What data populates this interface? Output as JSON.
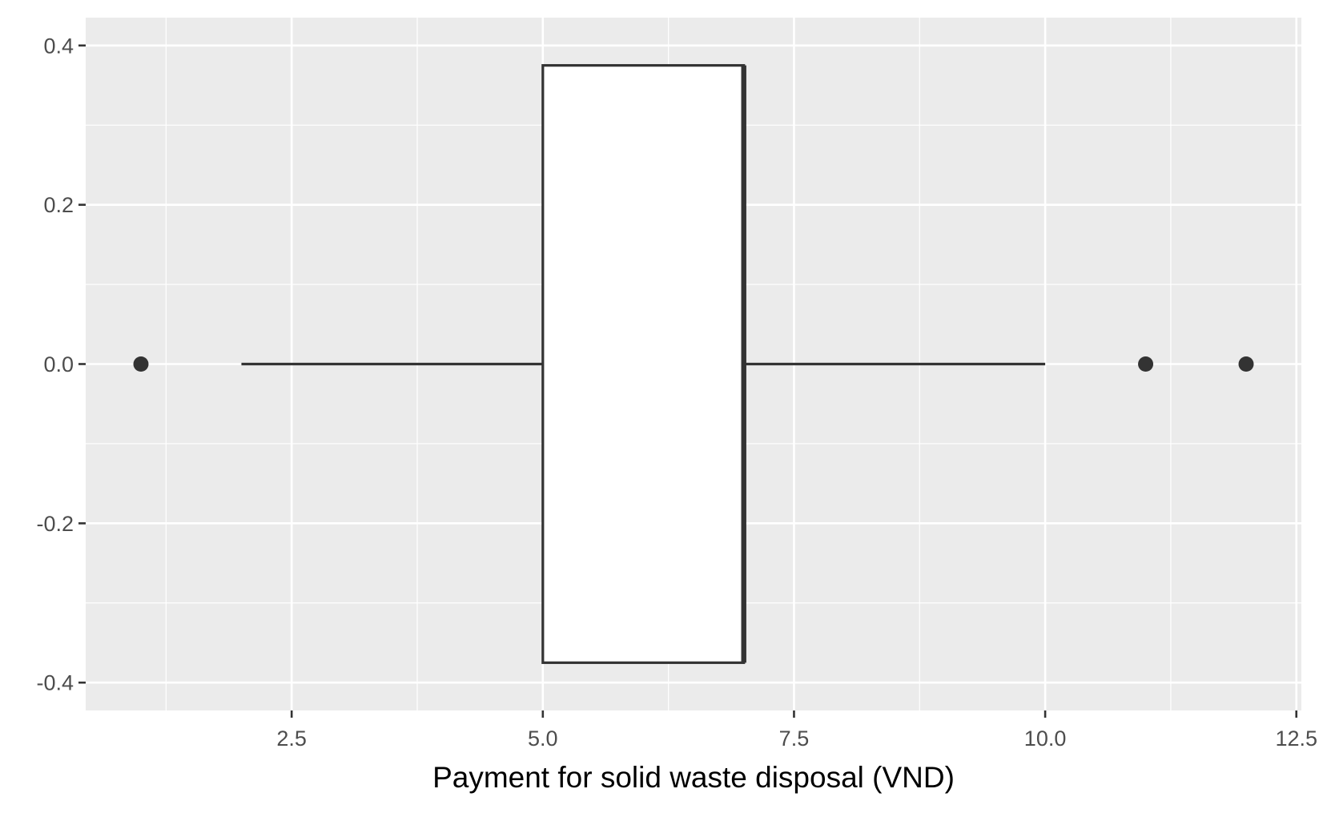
{
  "chart_data": {
    "type": "boxplot",
    "title": "",
    "xlabel": "Payment for solid waste disposal (VND)",
    "ylabel": "",
    "xlim": [
      0.45,
      12.55
    ],
    "ylim": [
      -0.4,
      0.4
    ],
    "x_ticks": [
      2.5,
      5.0,
      7.5,
      10.0,
      12.5
    ],
    "x_tick_labels": [
      "2.5",
      "5.0",
      "7.5",
      "10.0",
      "12.5"
    ],
    "x_minor_ticks": [
      1.25,
      3.75,
      6.25,
      8.75,
      11.25
    ],
    "y_ticks": [
      -0.4,
      -0.2,
      0.0,
      0.2,
      0.4
    ],
    "y_tick_labels": [
      "-0.4",
      "-0.2",
      "0.0",
      "0.2",
      "0.4"
    ],
    "y_minor_ticks": [
      -0.3,
      -0.1,
      0.1,
      0.3
    ],
    "grid": true,
    "box": {
      "lower_whisker": 2,
      "q1": 5,
      "median": 7,
      "q3": 7,
      "upper_whisker": 10,
      "box_y_range": [
        -0.375,
        0.375
      ],
      "center_y": 0
    },
    "outliers": [
      1,
      11,
      12
    ],
    "colors": {
      "panel_background": "#ebebeb",
      "grid": "#ffffff",
      "box_fill": "#ffffff",
      "box_line": "#333333",
      "outlier": "#333333",
      "tick": "#333333"
    }
  }
}
